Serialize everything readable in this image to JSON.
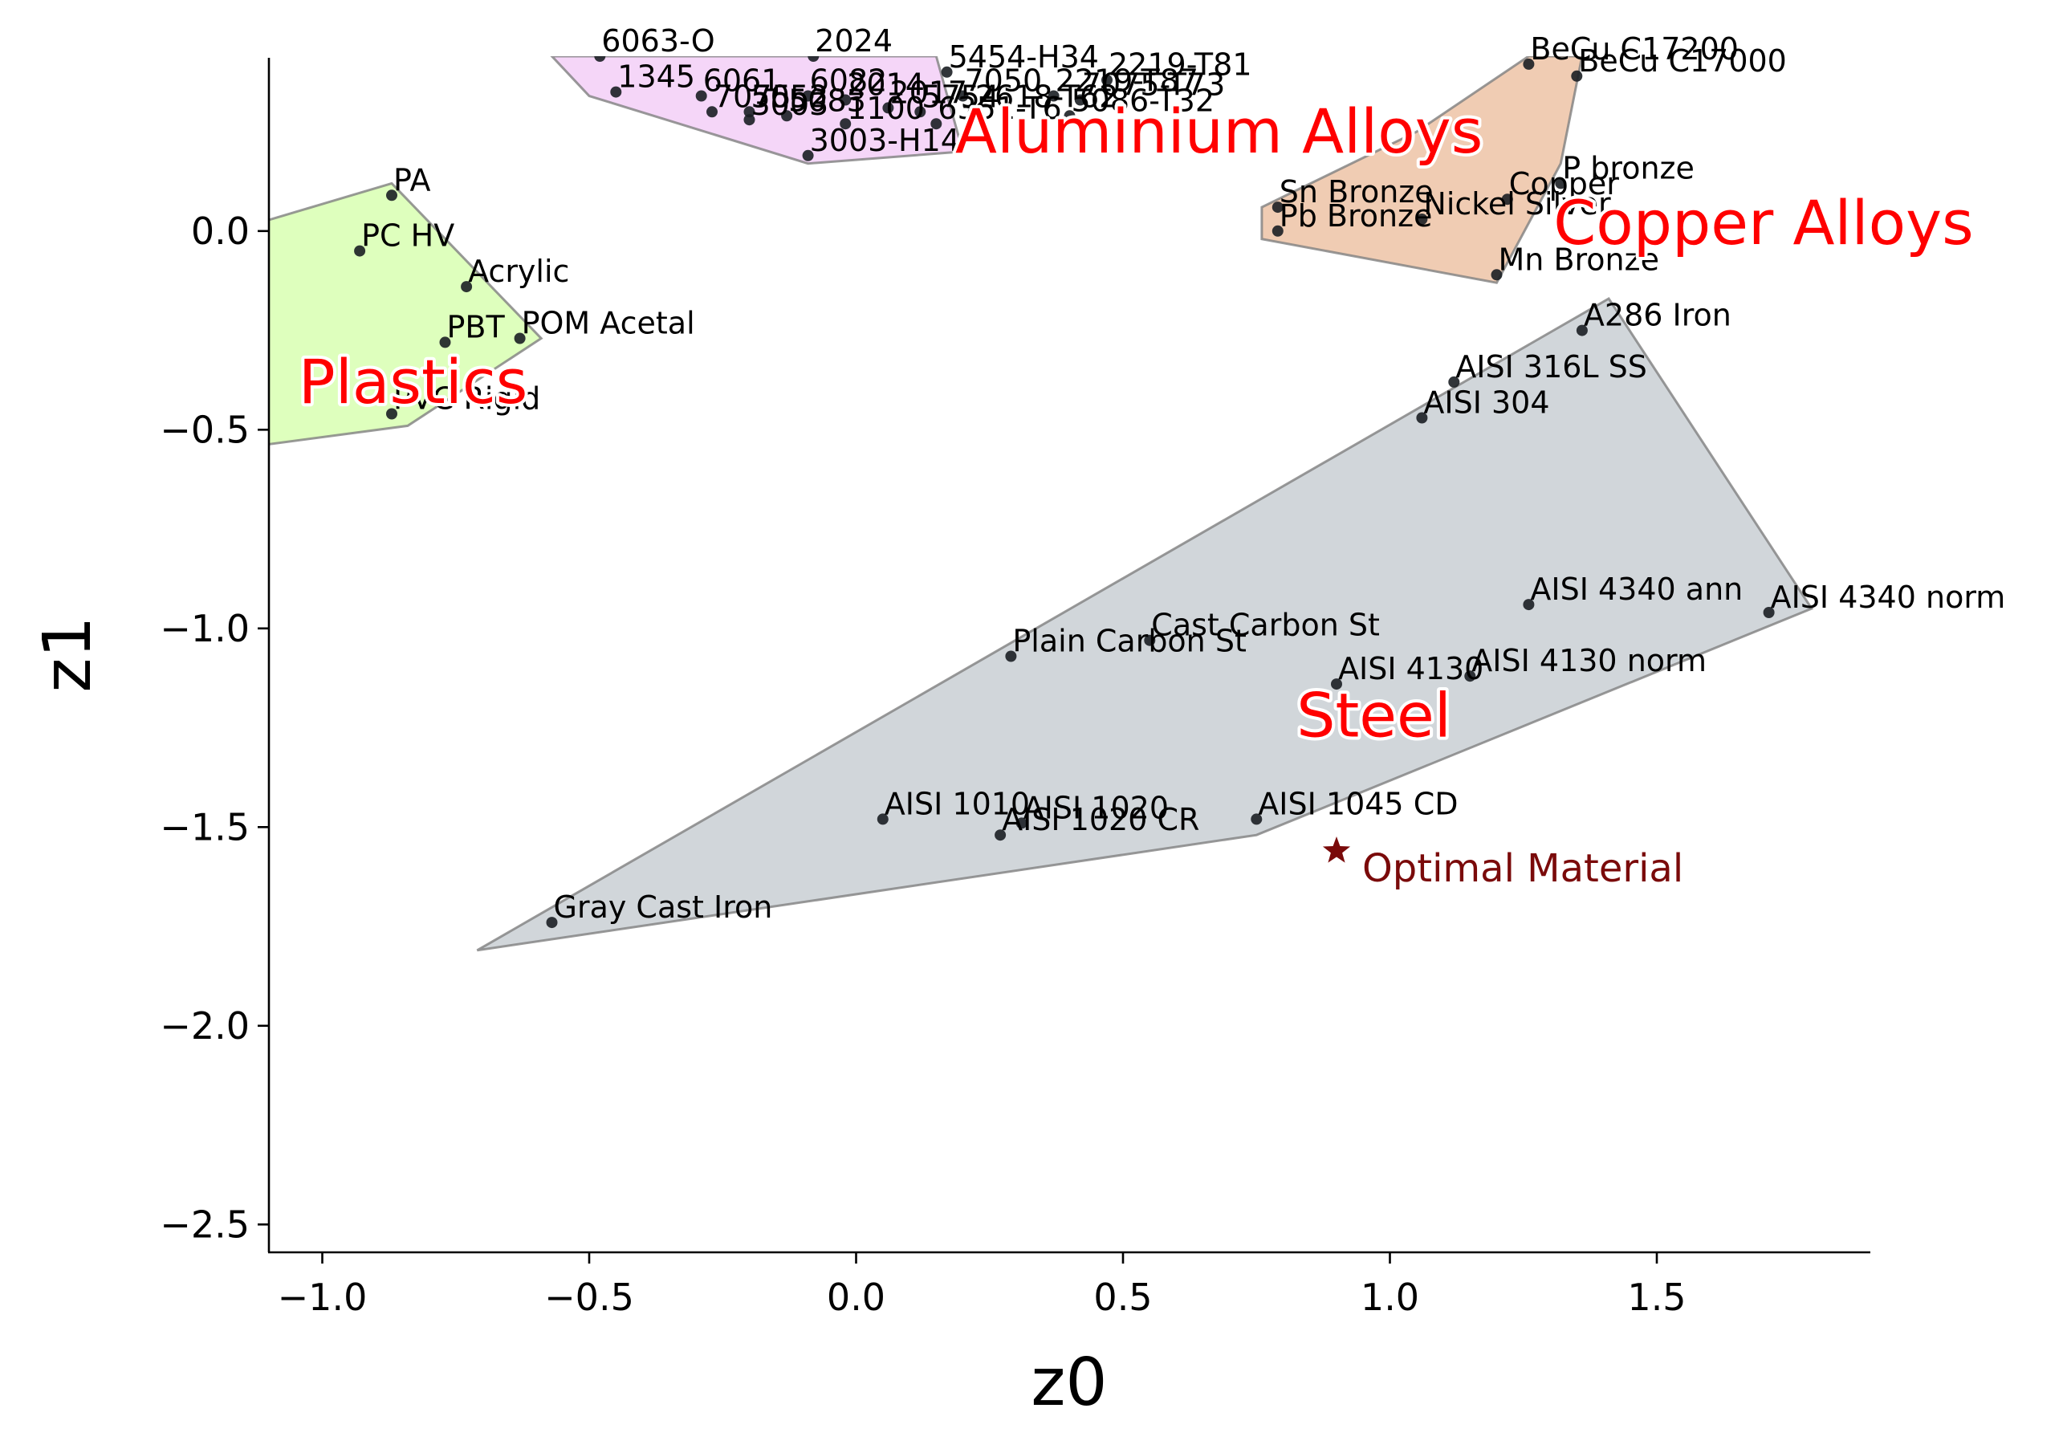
{
  "chart_data": {
    "type": "scatter",
    "xlabel": "z0",
    "ylabel": "z1",
    "xlim": [
      -1.1,
      1.9
    ],
    "ylim": [
      -2.57,
      0.44
    ],
    "xticks": [
      -1.0,
      -0.5,
      0.0,
      0.5,
      1.0,
      1.5
    ],
    "xtick_labels": [
      "−1.0",
      "−0.5",
      "0.0",
      "0.5",
      "1.0",
      "1.5"
    ],
    "yticks": [
      0.0,
      -0.5,
      -1.0,
      -1.5,
      -2.0,
      -2.5
    ],
    "ytick_labels": [
      "0.0",
      "−0.5",
      "−1.0",
      "−1.5",
      "−2.0",
      "−2.5"
    ],
    "grid": false,
    "groups": [
      {
        "name": "Plastics",
        "fill": "#ccff99",
        "label_pos": [
          -0.83,
          -0.39
        ],
        "hull": [
          [
            -1.12,
            0.02
          ],
          [
            -0.87,
            0.12
          ],
          [
            -0.59,
            -0.27
          ],
          [
            -0.84,
            -0.49
          ],
          [
            -1.12,
            -0.54
          ]
        ],
        "points": [
          {
            "name": "PA",
            "x": -0.87,
            "y": 0.09
          },
          {
            "name": "PC HV",
            "x": -0.93,
            "y": -0.05
          },
          {
            "name": "Acrylic",
            "x": -0.73,
            "y": -0.14
          },
          {
            "name": "PBT",
            "x": -0.77,
            "y": -0.28
          },
          {
            "name": "POM Acetal",
            "x": -0.63,
            "y": -0.27
          },
          {
            "name": "PVC Rigid",
            "x": -0.87,
            "y": -0.46
          }
        ]
      },
      {
        "name": "Aluminium Alloys",
        "fill": "#f0c0f5",
        "label_pos": [
          0.68,
          0.24
        ],
        "hull": [
          [
            -0.57,
            0.44
          ],
          [
            0.15,
            0.44
          ],
          [
            0.2,
            0.2
          ],
          [
            -0.09,
            0.17
          ],
          [
            -0.5,
            0.34
          ]
        ],
        "points": [
          {
            "name": "6063-O",
            "x": -0.48,
            "y": 0.44
          },
          {
            "name": "2024",
            "x": -0.08,
            "y": 0.44
          },
          {
            "name": "5454-H34",
            "x": 0.17,
            "y": 0.4
          },
          {
            "name": "2219-T81",
            "x": 0.47,
            "y": 0.38
          },
          {
            "name": "1345",
            "x": -0.45,
            "y": 0.35
          },
          {
            "name": "6061",
            "x": -0.29,
            "y": 0.34
          },
          {
            "name": "7075",
            "x": -0.27,
            "y": 0.3
          },
          {
            "name": "5052",
            "x": -0.2,
            "y": 0.3
          },
          {
            "name": "3003",
            "x": -0.2,
            "y": 0.28
          },
          {
            "name": "5083",
            "x": -0.13,
            "y": 0.29
          },
          {
            "name": "6082",
            "x": -0.09,
            "y": 0.34
          },
          {
            "name": "2014",
            "x": -0.02,
            "y": 0.33
          },
          {
            "name": "2017",
            "x": 0.06,
            "y": 0.31
          },
          {
            "name": "5754",
            "x": 0.12,
            "y": 0.3
          },
          {
            "name": "7050",
            "x": 0.2,
            "y": 0.34
          },
          {
            "name": "2219-T87",
            "x": 0.37,
            "y": 0.34
          },
          {
            "name": "7075-T73",
            "x": 0.42,
            "y": 0.33
          },
          {
            "name": "2618-T62",
            "x": 0.22,
            "y": 0.3
          },
          {
            "name": "5086-T32",
            "x": 0.4,
            "y": 0.29
          },
          {
            "name": "6351-T6",
            "x": 0.15,
            "y": 0.27
          },
          {
            "name": "3003-H14",
            "x": -0.09,
            "y": 0.19
          },
          {
            "name": "1100",
            "x": -0.02,
            "y": 0.27
          }
        ]
      },
      {
        "name": "Copper Alloys",
        "fill": "#e8b08a",
        "label_pos": [
          1.7,
          0.01
        ],
        "hull": [
          [
            0.76,
            0.06
          ],
          [
            1.05,
            0.25
          ],
          [
            1.26,
            0.44
          ],
          [
            1.36,
            0.44
          ],
          [
            1.32,
            0.17
          ],
          [
            1.2,
            -0.13
          ],
          [
            0.76,
            -0.02
          ]
        ],
        "points": [
          {
            "name": "BeCu C17200",
            "x": 1.26,
            "y": 0.42
          },
          {
            "name": "BeCu C17000",
            "x": 1.35,
            "y": 0.39
          },
          {
            "name": "P bronze",
            "x": 1.32,
            "y": 0.12
          },
          {
            "name": "Copper",
            "x": 1.22,
            "y": 0.08
          },
          {
            "name": "Sn Bronze",
            "x": 0.79,
            "y": 0.06
          },
          {
            "name": "Nickel Silver",
            "x": 1.06,
            "y": 0.03
          },
          {
            "name": "Pb Bronze",
            "x": 0.79,
            "y": 0.0
          },
          {
            "name": "Mn Bronze",
            "x": 1.2,
            "y": -0.11
          }
        ]
      },
      {
        "name": "Steel",
        "fill": "#b9c0c6",
        "label_pos": [
          0.97,
          -1.23
        ],
        "hull": [
          [
            -0.71,
            -1.81
          ],
          [
            1.41,
            -0.17
          ],
          [
            1.79,
            -0.95
          ],
          [
            0.75,
            -1.52
          ]
        ],
        "points": [
          {
            "name": "A286 Iron",
            "x": 1.36,
            "y": -0.25
          },
          {
            "name": "AISI 316L SS",
            "x": 1.12,
            "y": -0.38
          },
          {
            "name": "AISI 304",
            "x": 1.06,
            "y": -0.47
          },
          {
            "name": "AISI 4340 ann",
            "x": 1.26,
            "y": -0.94
          },
          {
            "name": "AISI 4340 norm",
            "x": 1.71,
            "y": -0.96
          },
          {
            "name": "Cast Carbon St",
            "x": 0.55,
            "y": -1.03
          },
          {
            "name": "Plain Carbon St",
            "x": 0.29,
            "y": -1.07
          },
          {
            "name": "AISI 4130",
            "x": 0.9,
            "y": -1.14
          },
          {
            "name": "AISI 4130 norm",
            "x": 1.15,
            "y": -1.12
          },
          {
            "name": "AISI 1010",
            "x": 0.05,
            "y": -1.48
          },
          {
            "name": "AISI 1020",
            "x": 0.31,
            "y": -1.49
          },
          {
            "name": "AISI 1020 CR",
            "x": 0.27,
            "y": -1.52
          },
          {
            "name": "AISI 1045 CD",
            "x": 0.75,
            "y": -1.48
          },
          {
            "name": "Gray Cast Iron",
            "x": -0.57,
            "y": -1.74
          }
        ]
      }
    ],
    "optimal": {
      "name": "Optimal Material",
      "x": 0.9,
      "y": -1.56
    },
    "colors": {
      "point": "#1b1f24",
      "group_label": "#ff0000",
      "optimal": "#7a0a0a",
      "hull_edge": "#808080"
    }
  }
}
